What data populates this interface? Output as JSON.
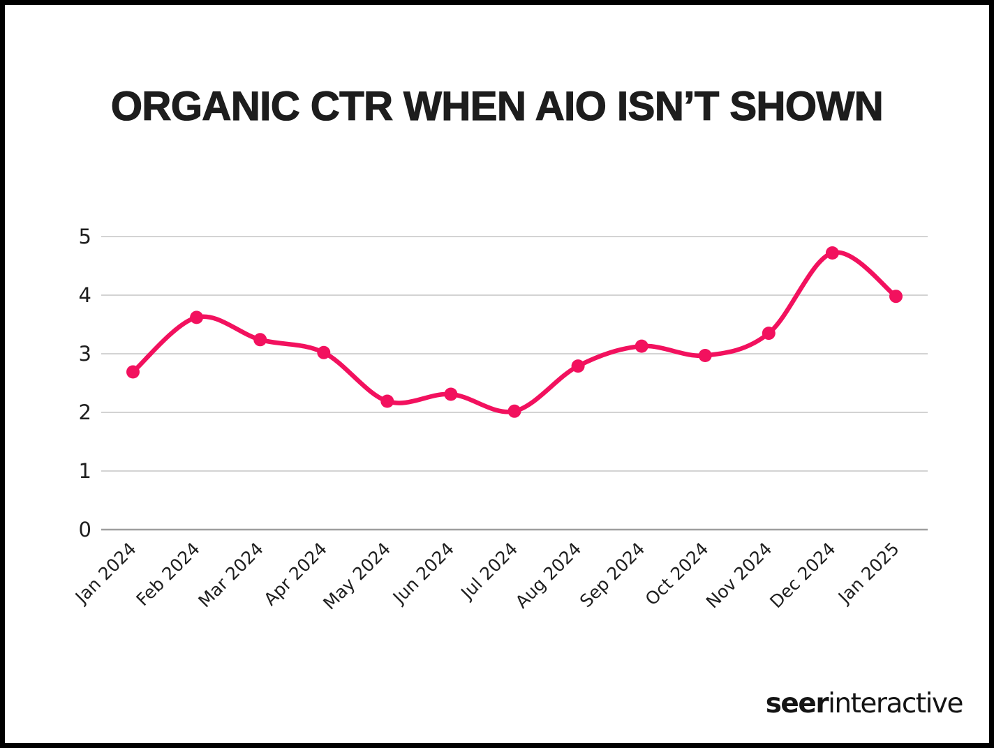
{
  "chart_data": {
    "type": "line",
    "title": "ORGANIC CTR WHEN AIO ISN’T SHOWN",
    "categories": [
      "Jan 2024",
      "Feb 2024",
      "Mar 2024",
      "Apr 2024",
      "May 2024",
      "Jun 2024",
      "Jul 2024",
      "Aug 2024",
      "Sep 2024",
      "Oct 2024",
      "Nov 2024",
      "Dec 2024",
      "Jan 2025"
    ],
    "values": [
      2.69,
      3.62,
      3.24,
      3.02,
      2.19,
      2.31,
      2.02,
      2.79,
      3.13,
      2.97,
      3.35,
      4.72,
      3.98
    ],
    "xlabel": "",
    "ylabel": "",
    "ylim": [
      0,
      5
    ],
    "yticks": [
      0,
      1,
      2,
      3,
      4,
      5
    ],
    "grid": true,
    "legend": false,
    "line_color": "#F2115E",
    "marker": "circle"
  },
  "footer": {
    "logo_bold": "seer",
    "logo_light": "interactive"
  }
}
